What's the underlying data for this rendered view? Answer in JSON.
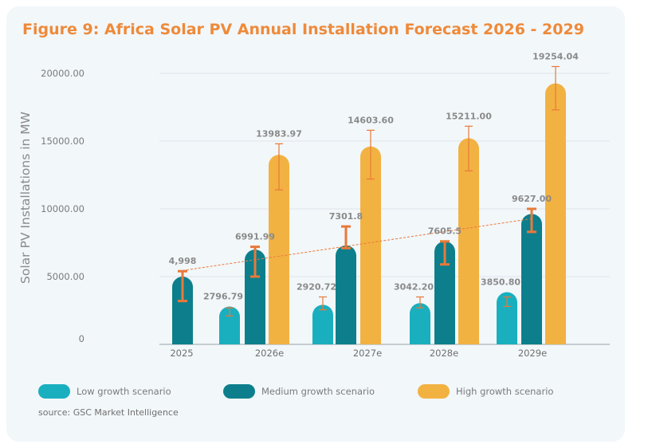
{
  "title": "Figure 9: Africa Solar PV Annual Installation Forecast 2026 - 2029",
  "source": "source: GSC Market Intelligence",
  "colors": {
    "low": "#1aafbe",
    "medium": "#0d7f8c",
    "high": "#f2b242",
    "error": "#e8793a",
    "trend": "#e8793a",
    "title": "#ee8a3a"
  },
  "legend": [
    {
      "key": "low",
      "label": "Low growth scenario"
    },
    {
      "key": "medium",
      "label": "Medium growth scenario"
    },
    {
      "key": "high",
      "label": "High growth scenario"
    }
  ],
  "chart_data": {
    "type": "bar",
    "title": "Figure 9: Africa Solar PV Annual Installation Forecast 2026 - 2029",
    "ylabel": "Solar PV Installations in MW",
    "xlabel": "",
    "ylim": [
      0,
      20000
    ],
    "yticks": [
      "0",
      "5000.00",
      "10000.00",
      "15000.00",
      "20000.00"
    ],
    "ytick_values": [
      0,
      5000,
      10000,
      15000,
      20000
    ],
    "grid": true,
    "legend_position": "bottom",
    "categories": [
      "2025",
      "2026e",
      "2027e",
      "2028e",
      "2029e"
    ],
    "series": [
      {
        "key": "low",
        "name": "Low growth scenario",
        "values": [
          null,
          2796.79,
          2920.72,
          3042.2,
          3850.8
        ],
        "labels": [
          null,
          "2796.79",
          "2920.72",
          "3042.20",
          "3850.80"
        ],
        "error_low": [
          null,
          2100,
          2550,
          2700,
          2800
        ],
        "error_high": [
          null,
          2700,
          3500,
          3500,
          3500
        ]
      },
      {
        "key": "medium",
        "name": "Medium growth scenario",
        "values": [
          4998,
          6991.99,
          7301.8,
          7605.5,
          9627.0
        ],
        "labels": [
          "4,998",
          "6991.99",
          "7301.8",
          "7605.5",
          "9627.00"
        ],
        "error_low": [
          3200,
          5000,
          7100,
          5900,
          8300
        ],
        "error_high": [
          5400,
          7200,
          8700,
          7600,
          10000
        ]
      },
      {
        "key": "high",
        "name": "High growth scenario",
        "values": [
          null,
          13983.97,
          14603.6,
          15211.0,
          19254.04
        ],
        "labels": [
          null,
          "13983.97",
          "14603.60",
          "15211.00",
          "19254.04"
        ],
        "error_low": [
          null,
          11400,
          12200,
          12800,
          17300
        ],
        "error_high": [
          null,
          14800,
          15800,
          16100,
          20500
        ]
      }
    ],
    "trendline": {
      "series": "medium",
      "type": "linear",
      "style": "dashed"
    }
  }
}
